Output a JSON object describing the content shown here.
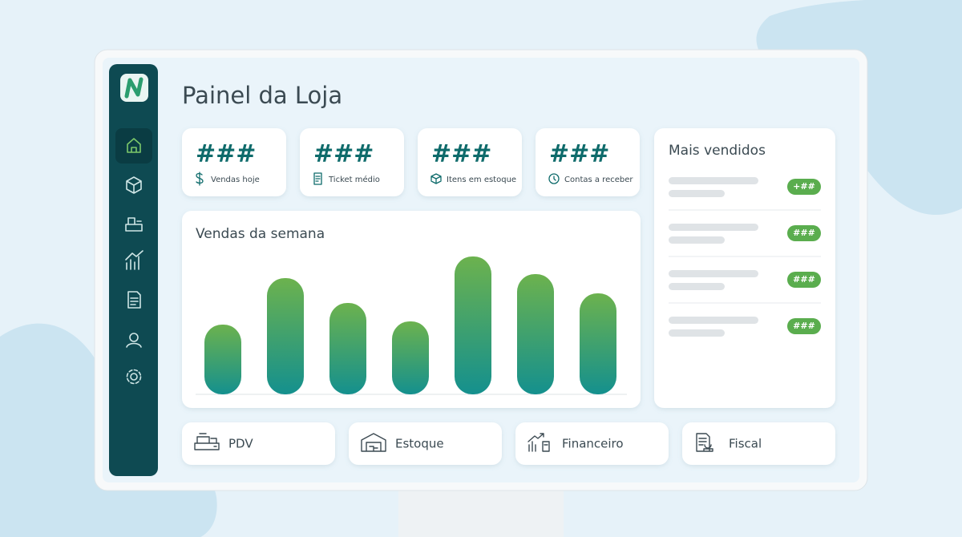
{
  "header": {
    "title": "Painel da Loja"
  },
  "kpis": [
    {
      "value": "###",
      "label": "Vendas hoje"
    },
    {
      "value": "###",
      "label": "Ticket médio"
    },
    {
      "value": "###",
      "label": "Itens em estoque"
    },
    {
      "value": "###",
      "label": "Contas a receber"
    }
  ],
  "chart_data": {
    "type": "bar",
    "title": "Vendas da semana",
    "values": [
      87,
      145,
      114,
      91,
      172,
      150,
      126
    ],
    "ylim": [
      0,
      200
    ],
    "color_top": "#6cb24e",
    "color_bottom": "#14908e"
  },
  "top_sellers": {
    "title": "Mais vendidos",
    "badges": [
      "+##",
      "###",
      "###",
      "###"
    ]
  },
  "shortcuts": [
    "PDV",
    "Estoque",
    "Financeiro",
    "Fiscal"
  ]
}
